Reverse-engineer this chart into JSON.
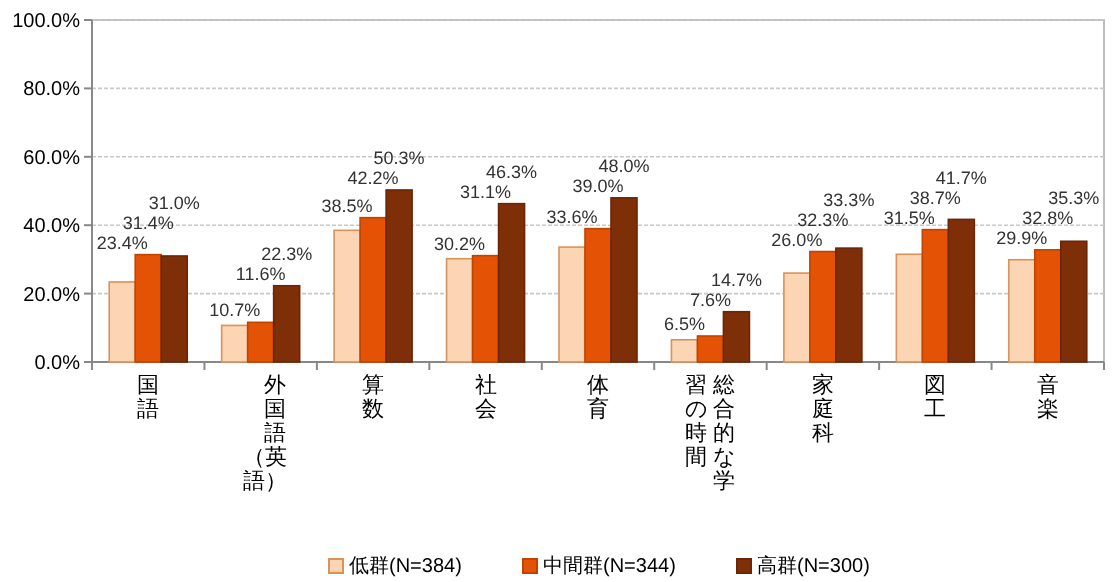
{
  "chart_data": {
    "type": "bar",
    "categories": [
      "国語",
      "外国語（英語）",
      "算数",
      "社会",
      "体育",
      "総合的な学習の時間",
      "家庭科",
      "図工",
      "音楽"
    ],
    "series": [
      {
        "name": "低群(N=384)",
        "color": "#fcd5b4",
        "values": [
          23.4,
          10.7,
          38.5,
          30.2,
          33.6,
          6.5,
          26.0,
          31.5,
          29.9
        ],
        "value_labels": [
          "23.4%",
          "10.7%",
          "38.5%",
          "30.2%",
          "33.6%",
          "6.5%",
          "26.0%",
          "31.5%",
          "29.9%"
        ]
      },
      {
        "name": "中間群(N=344)",
        "color": "#e35205",
        "values": [
          31.4,
          11.6,
          42.2,
          31.1,
          39.0,
          7.6,
          32.3,
          38.7,
          32.8
        ],
        "value_labels": [
          "31.4%",
          "11.6%",
          "42.2%",
          "31.1%",
          "39.0%",
          "7.6%",
          "32.3%",
          "38.7%",
          "32.8%"
        ]
      },
      {
        "name": "高群(N=300)",
        "color": "#7f2f08",
        "values": [
          31.0,
          22.3,
          50.3,
          46.3,
          48.0,
          14.7,
          33.3,
          41.7,
          35.3
        ],
        "value_labels": [
          "31.0%",
          "22.3%",
          "50.3%",
          "46.3%",
          "48.0%",
          "14.7%",
          "33.3%",
          "41.7%",
          "35.3%"
        ]
      }
    ],
    "ylim": [
      0,
      100
    ],
    "yticks": [
      {
        "value": 0,
        "label": "0.0%"
      },
      {
        "value": 20,
        "label": "20.0%"
      },
      {
        "value": 40,
        "label": "40.0%"
      },
      {
        "value": 60,
        "label": "60.0%"
      },
      {
        "value": 80,
        "label": "80.0%"
      },
      {
        "value": 100,
        "label": "100.0%"
      }
    ],
    "grid": "y",
    "legend": "bottom"
  }
}
